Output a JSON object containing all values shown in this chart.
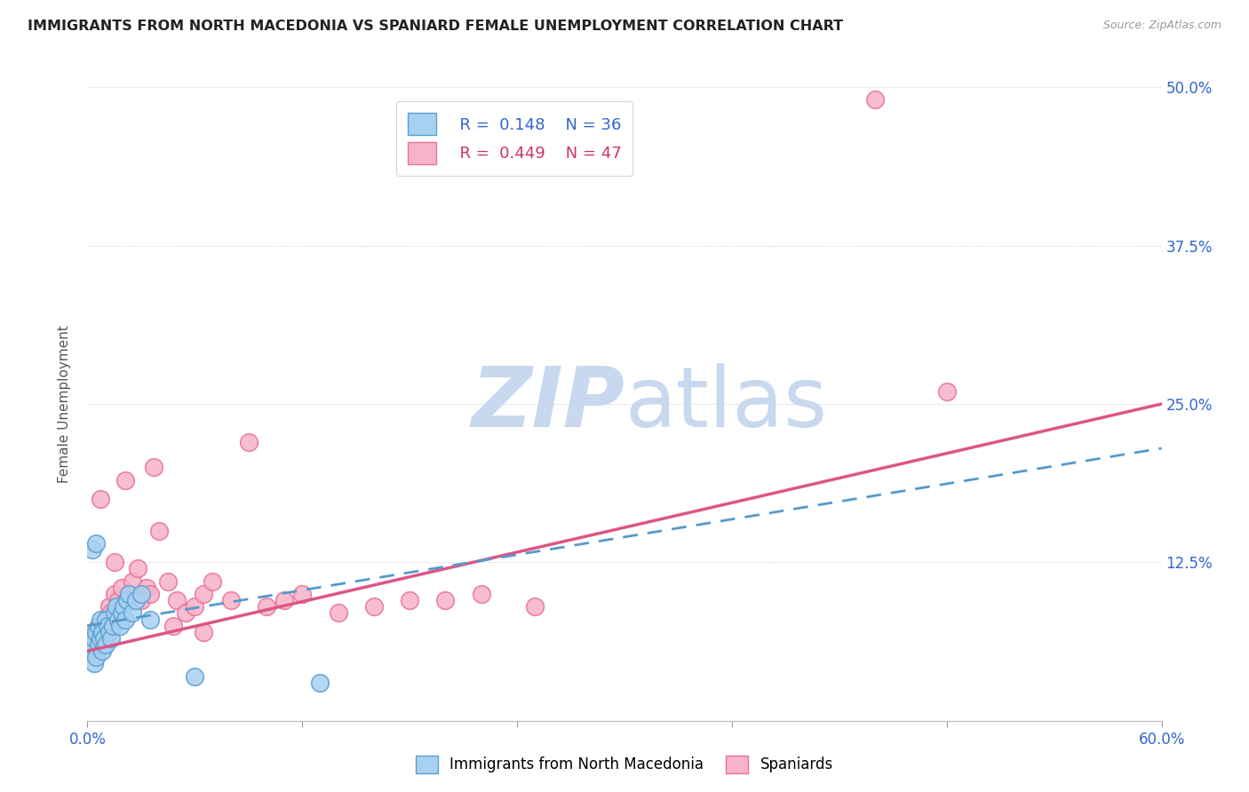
{
  "title": "IMMIGRANTS FROM NORTH MACEDONIA VS SPANIARD FEMALE UNEMPLOYMENT CORRELATION CHART",
  "source": "Source: ZipAtlas.com",
  "ylabel": "Female Unemployment",
  "xlim": [
    0.0,
    0.6
  ],
  "ylim": [
    0.0,
    0.5
  ],
  "xticks": [
    0.0,
    0.12,
    0.24,
    0.36,
    0.48,
    0.6
  ],
  "xticklabels": [
    "0.0%",
    "",
    "",
    "",
    "",
    "60.0%"
  ],
  "yticks": [
    0.0,
    0.125,
    0.25,
    0.375,
    0.5
  ],
  "yticklabels": [
    "",
    "12.5%",
    "25.0%",
    "37.5%",
    "50.0%"
  ],
  "blue_R": 0.148,
  "blue_N": 36,
  "pink_R": 0.449,
  "pink_N": 47,
  "blue_color": "#a8d0f0",
  "pink_color": "#f7b3c8",
  "blue_edge_color": "#5a9fd4",
  "pink_edge_color": "#e8729a",
  "blue_line_color": "#5599cc",
  "pink_line_color": "#dd5588",
  "blue_scatter_x": [
    0.002,
    0.003,
    0.004,
    0.004,
    0.005,
    0.005,
    0.006,
    0.006,
    0.007,
    0.007,
    0.008,
    0.008,
    0.009,
    0.01,
    0.01,
    0.011,
    0.012,
    0.013,
    0.014,
    0.015,
    0.016,
    0.017,
    0.018,
    0.019,
    0.02,
    0.021,
    0.022,
    0.023,
    0.025,
    0.027,
    0.03,
    0.035,
    0.06,
    0.13,
    0.003,
    0.005
  ],
  "blue_scatter_y": [
    0.055,
    0.06,
    0.065,
    0.045,
    0.07,
    0.05,
    0.06,
    0.075,
    0.065,
    0.08,
    0.07,
    0.055,
    0.065,
    0.08,
    0.06,
    0.075,
    0.07,
    0.065,
    0.075,
    0.085,
    0.09,
    0.08,
    0.075,
    0.085,
    0.09,
    0.08,
    0.095,
    0.1,
    0.085,
    0.095,
    0.1,
    0.08,
    0.035,
    0.03,
    0.135,
    0.14
  ],
  "pink_scatter_x": [
    0.002,
    0.003,
    0.004,
    0.005,
    0.006,
    0.007,
    0.008,
    0.009,
    0.01,
    0.011,
    0.012,
    0.013,
    0.015,
    0.017,
    0.019,
    0.021,
    0.025,
    0.028,
    0.03,
    0.033,
    0.037,
    0.04,
    0.045,
    0.05,
    0.055,
    0.06,
    0.065,
    0.07,
    0.08,
    0.09,
    0.1,
    0.11,
    0.12,
    0.14,
    0.16,
    0.18,
    0.2,
    0.22,
    0.25,
    0.007,
    0.015,
    0.022,
    0.035,
    0.048,
    0.065,
    0.48,
    0.44
  ],
  "pink_scatter_y": [
    0.06,
    0.07,
    0.065,
    0.055,
    0.075,
    0.065,
    0.06,
    0.07,
    0.08,
    0.075,
    0.09,
    0.085,
    0.1,
    0.095,
    0.105,
    0.19,
    0.11,
    0.12,
    0.095,
    0.105,
    0.2,
    0.15,
    0.11,
    0.095,
    0.085,
    0.09,
    0.1,
    0.11,
    0.095,
    0.22,
    0.09,
    0.095,
    0.1,
    0.085,
    0.09,
    0.095,
    0.095,
    0.1,
    0.09,
    0.175,
    0.125,
    0.095,
    0.1,
    0.075,
    0.07,
    0.26,
    0.49
  ],
  "blue_trendline_x": [
    0.0,
    0.6
  ],
  "blue_trendline_y": [
    0.075,
    0.215
  ],
  "pink_trendline_x": [
    0.0,
    0.6
  ],
  "pink_trendline_y": [
    0.055,
    0.25
  ]
}
